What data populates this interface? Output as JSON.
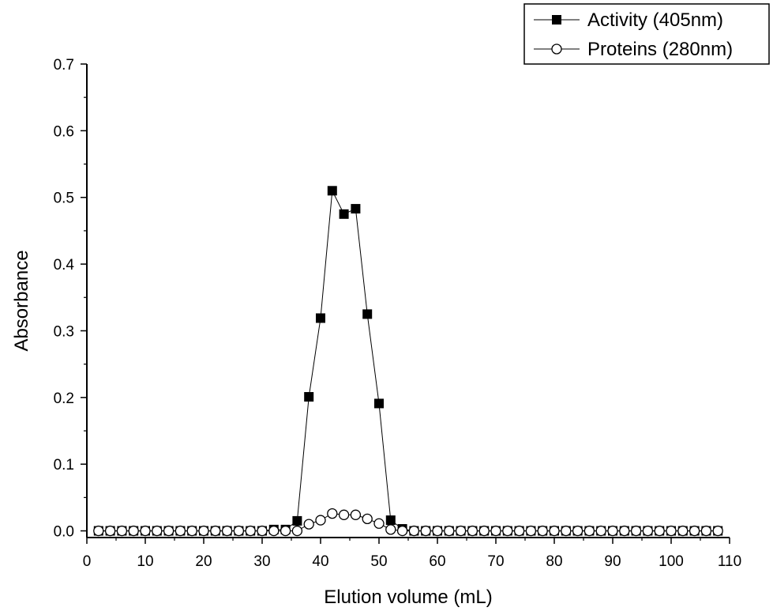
{
  "chart_data": {
    "type": "scatter",
    "title": "",
    "xlabel": "Elution volume (mL)",
    "ylabel": "Absorbance",
    "xlim": [
      0,
      110
    ],
    "ylim": [
      -0.01,
      0.7
    ],
    "xticks": [
      0,
      10,
      20,
      30,
      40,
      50,
      60,
      70,
      80,
      90,
      100,
      110
    ],
    "yticks": [
      0.0,
      0.1,
      0.2,
      0.3,
      0.4,
      0.5,
      0.6,
      0.7
    ],
    "xtick_labels": [
      "0",
      "10",
      "20",
      "30",
      "40",
      "50",
      "60",
      "70",
      "80",
      "90",
      "100",
      "110"
    ],
    "ytick_labels": [
      "0.0",
      "0.1",
      "0.2",
      "0.3",
      "0.4",
      "0.5",
      "0.6",
      "0.7"
    ],
    "grid": false,
    "legend_position": "top-right",
    "series": [
      {
        "name": "Activity (405nm)",
        "marker": "filled-square",
        "color": "#000000",
        "x": [
          2,
          4,
          6,
          8,
          10,
          12,
          14,
          16,
          18,
          20,
          22,
          24,
          26,
          28,
          30,
          32,
          34,
          36,
          38,
          40,
          42,
          44,
          46,
          48,
          50,
          52,
          54,
          56,
          58,
          60,
          62,
          64,
          66,
          68,
          70,
          72,
          74,
          76,
          78,
          80,
          82,
          84,
          86,
          88,
          90,
          92,
          94,
          96,
          98,
          100,
          102,
          104,
          106,
          108
        ],
        "y": [
          0,
          0,
          0,
          0,
          0,
          0,
          0,
          0,
          0,
          0,
          0,
          0,
          0,
          0,
          0,
          0.002,
          0.002,
          0.015,
          0.201,
          0.319,
          0.51,
          0.475,
          0.483,
          0.325,
          0.191,
          0.016,
          0.003,
          0,
          0,
          0,
          0,
          0,
          0,
          0,
          0,
          0,
          0,
          0,
          0,
          0,
          0,
          0,
          0,
          0,
          0,
          0,
          0,
          0,
          0,
          0,
          0,
          0,
          0,
          0
        ]
      },
      {
        "name": "Proteins (280nm)",
        "marker": "open-circle",
        "color": "#000000",
        "x": [
          2,
          4,
          6,
          8,
          10,
          12,
          14,
          16,
          18,
          20,
          22,
          24,
          26,
          28,
          30,
          32,
          34,
          36,
          38,
          40,
          42,
          44,
          46,
          48,
          50,
          52,
          54,
          56,
          58,
          60,
          62,
          64,
          66,
          68,
          70,
          72,
          74,
          76,
          78,
          80,
          82,
          84,
          86,
          88,
          90,
          92,
          94,
          96,
          98,
          100,
          102,
          104,
          106,
          108
        ],
        "y": [
          0,
          0,
          0,
          0,
          0,
          0,
          0,
          0,
          0,
          0,
          0,
          0,
          0,
          0,
          0,
          0,
          0,
          0,
          0.01,
          0.016,
          0.026,
          0.024,
          0.024,
          0.018,
          0.011,
          0.002,
          0,
          0,
          0,
          0,
          0,
          0,
          0,
          0,
          0,
          0,
          0,
          0,
          0,
          0,
          0,
          0,
          0,
          0,
          0,
          0,
          0,
          0,
          0,
          0,
          0,
          0,
          0,
          0
        ]
      }
    ]
  }
}
